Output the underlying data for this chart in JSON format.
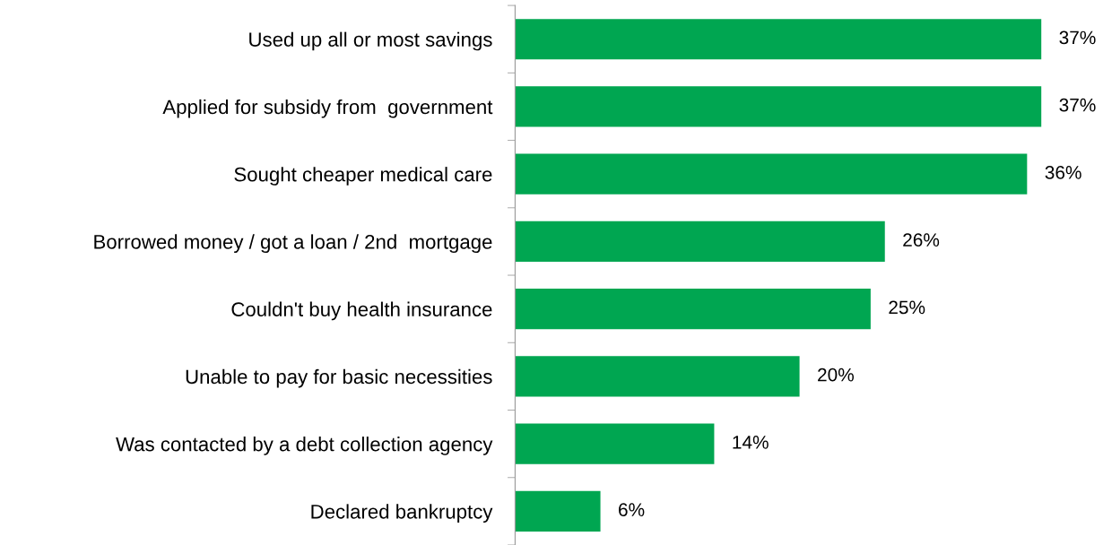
{
  "chart_data": {
    "type": "bar",
    "orientation": "horizontal",
    "categories": [
      "Used up all or most savings",
      "Applied for subsidy from  government",
      "Sought cheaper medical care",
      "Borrowed money / got a loan / 2nd  mortgage",
      "Couldn't buy health insurance",
      "Unable to pay for basic necessities",
      "Was contacted by a debt collection agency",
      "Declared bankruptcy"
    ],
    "values": [
      37,
      37,
      36,
      26,
      25,
      20,
      14,
      6
    ],
    "value_labels": [
      "37%",
      "37%",
      "36%",
      "26%",
      "25%",
      "20%",
      "14%",
      "6%"
    ],
    "color": "#00a651",
    "grid": false,
    "legend": false
  }
}
